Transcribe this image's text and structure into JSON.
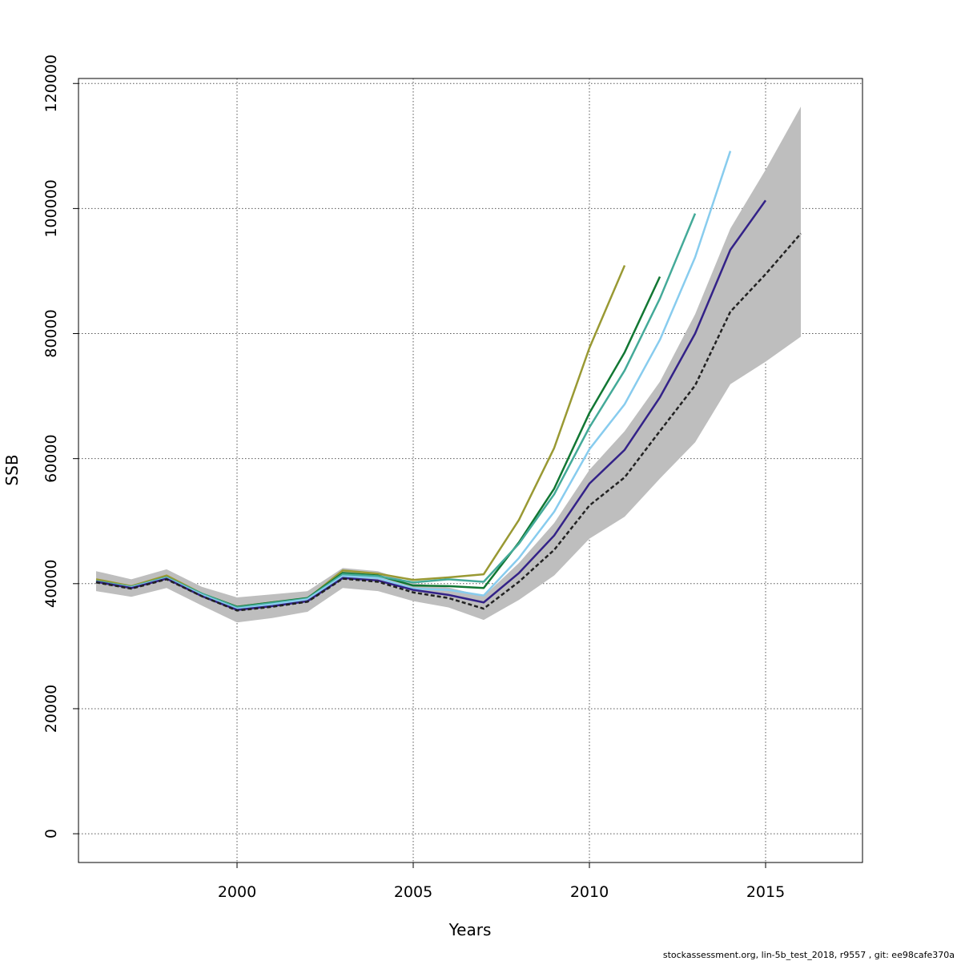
{
  "chart_data": {
    "type": "line",
    "xlabel": "Years",
    "ylabel": "SSB",
    "xlim": [
      1995.5,
      2017.75
    ],
    "ylim": [
      -4600,
      120800
    ],
    "x_ticks": [
      2000,
      2005,
      2010,
      2015
    ],
    "y_ticks": [
      0,
      20000,
      40000,
      60000,
      80000,
      100000,
      120000
    ],
    "grid": true,
    "legend": "none",
    "band": {
      "color": "#bebebe",
      "x": [
        1996,
        1997,
        1998,
        1999,
        2000,
        2001,
        2002,
        2003,
        2004,
        2005,
        2006,
        2007,
        2008,
        2009,
        2010,
        2011,
        2012,
        2013,
        2014,
        2015,
        2016
      ],
      "lower": [
        38800,
        37900,
        39300,
        36500,
        33800,
        34500,
        35500,
        39300,
        38800,
        37200,
        36200,
        34200,
        37400,
        41300,
        47200,
        50700,
        56800,
        62600,
        71900,
        75500,
        79500
      ],
      "upper": [
        42000,
        40700,
        42300,
        39500,
        37800,
        38300,
        38800,
        42500,
        42000,
        40100,
        39400,
        38000,
        43300,
        49700,
        58200,
        64400,
        72300,
        83100,
        96800,
        106200,
        116300
      ]
    },
    "series": [
      {
        "color": "#222222",
        "dashed": true,
        "width": 2.5,
        "x": [
          1996,
          1997,
          1998,
          1999,
          2000,
          2001,
          2002,
          2003,
          2004,
          2005,
          2006,
          2007,
          2008,
          2009,
          2010,
          2011,
          2012,
          2013,
          2014,
          2015,
          2016
        ],
        "y": [
          40200,
          39200,
          40700,
          38000,
          35700,
          36300,
          37100,
          40800,
          40300,
          38600,
          37700,
          36000,
          40300,
          45400,
          52500,
          57000,
          64400,
          71700,
          83500,
          89500,
          96000
        ]
      },
      {
        "color": "#332288",
        "dashed": false,
        "width": 2.5,
        "x": [
          1996,
          1997,
          1998,
          1999,
          2000,
          2001,
          2002,
          2003,
          2004,
          2005,
          2006,
          2007,
          2008,
          2009,
          2010,
          2011,
          2012,
          2013,
          2014,
          2015
        ],
        "y": [
          40300,
          39300,
          40800,
          38000,
          35800,
          36400,
          37200,
          40900,
          40500,
          39000,
          38200,
          37000,
          41700,
          47700,
          56000,
          61400,
          69800,
          80000,
          93400,
          101300
        ]
      },
      {
        "color": "#88ccee",
        "dashed": false,
        "width": 2.5,
        "x": [
          1996,
          1997,
          1998,
          1999,
          2000,
          2001,
          2002,
          2003,
          2004,
          2005,
          2006,
          2007,
          2008,
          2009,
          2010,
          2011,
          2012,
          2013,
          2014
        ],
        "y": [
          40300,
          39400,
          40900,
          38200,
          36000,
          36700,
          37500,
          41200,
          40900,
          39200,
          39000,
          38100,
          44100,
          51500,
          61500,
          68700,
          79000,
          92200,
          109200
        ]
      },
      {
        "color": "#44aa99",
        "dashed": false,
        "width": 2.5,
        "x": [
          1996,
          1997,
          1998,
          1999,
          2000,
          2001,
          2002,
          2003,
          2004,
          2005,
          2006,
          2007,
          2008,
          2009,
          2010,
          2011,
          2012,
          2013
        ],
        "y": [
          40400,
          39500,
          41000,
          38400,
          36200,
          36900,
          37600,
          41500,
          41200,
          40200,
          40700,
          40300,
          46400,
          54300,
          65000,
          74100,
          85600,
          99200
        ]
      },
      {
        "color": "#117733",
        "dashed": false,
        "width": 2.5,
        "x": [
          1996,
          1997,
          1998,
          1999,
          2000,
          2001,
          2002,
          2003,
          2004,
          2005,
          2006,
          2007,
          2008,
          2009,
          2010,
          2011,
          2012
        ],
        "y": [
          40400,
          39400,
          41000,
          38400,
          36300,
          37000,
          37700,
          41700,
          41300,
          39700,
          39600,
          39300,
          46600,
          55200,
          67300,
          77000,
          89100
        ]
      },
      {
        "color": "#999933",
        "dashed": false,
        "width": 2.5,
        "x": [
          1996,
          1997,
          1998,
          1999,
          2000,
          2001,
          2002,
          2003,
          2004,
          2005,
          2006,
          2007,
          2008,
          2009,
          2010,
          2011
        ],
        "y": [
          40700,
          39600,
          41300,
          38400,
          36300,
          37000,
          37600,
          42100,
          41600,
          40600,
          41000,
          41500,
          50200,
          61700,
          77700,
          90900
        ]
      }
    ]
  },
  "footer": "stockassessment.org, lin-5b_test_2018, r9557 , git: ee98cafe370a"
}
